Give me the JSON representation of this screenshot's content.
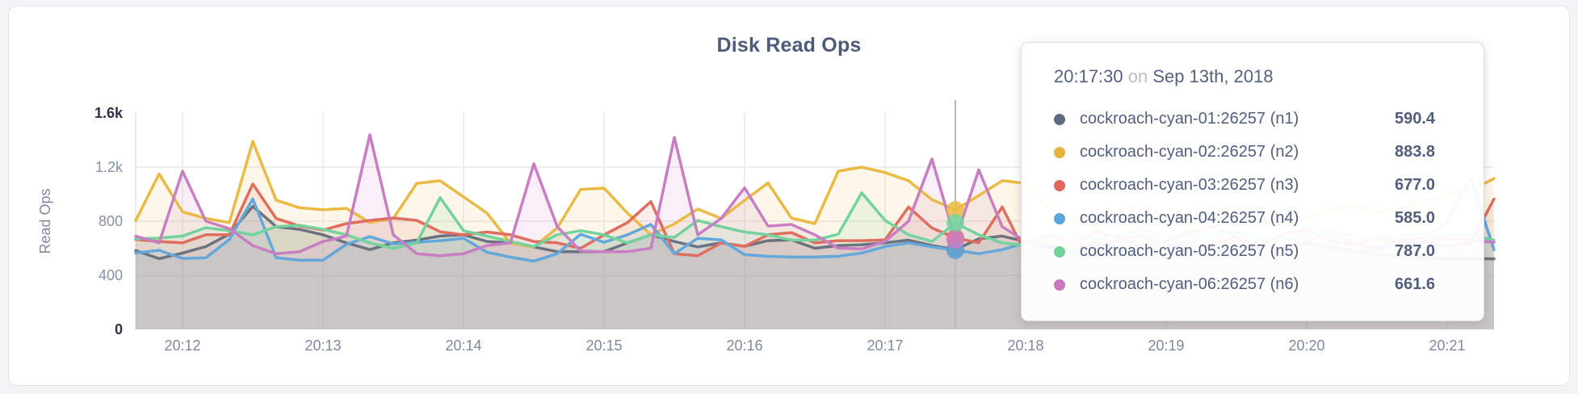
{
  "chart": {
    "title": "Disk Read Ops",
    "y_axis_label": "Read Ops"
  },
  "tooltip": {
    "time": "20:17:30",
    "conjunction": "on",
    "date": "Sep 13th, 2018",
    "rows": [
      {
        "label": "cockroach-cyan-01:26257 (n1)",
        "value": "590.4",
        "color": "#606a80"
      },
      {
        "label": "cockroach-cyan-02:26257 (n2)",
        "value": "883.8",
        "color": "#e6b33f"
      },
      {
        "label": "cockroach-cyan-03:26257 (n3)",
        "value": "677.0",
        "color": "#df675c"
      },
      {
        "label": "cockroach-cyan-04:26257 (n4)",
        "value": "585.0",
        "color": "#5ea5da"
      },
      {
        "label": "cockroach-cyan-05:26257 (n5)",
        "value": "787.0",
        "color": "#72d297"
      },
      {
        "label": "cockroach-cyan-06:26257 (n6)",
        "value": "661.6",
        "color": "#c978c0"
      }
    ]
  },
  "chart_data": {
    "type": "line",
    "title": "Disk Read Ops",
    "xlabel": "",
    "ylabel": "Read Ops",
    "ylim": [
      0,
      1600
    ],
    "grid": true,
    "legend_position": "tooltip",
    "y_ticks": [
      {
        "label": "0",
        "value": 0,
        "strong": true
      },
      {
        "label": "400",
        "value": 400,
        "strong": false
      },
      {
        "label": "800",
        "value": 800,
        "strong": false
      },
      {
        "label": "1.2k",
        "value": 1200,
        "strong": false
      },
      {
        "label": "1.6k",
        "value": 1600,
        "strong": true
      }
    ],
    "x_tick_labels": [
      "20:12",
      "20:13",
      "20:14",
      "20:15",
      "20:16",
      "20:17",
      "20:18",
      "20:19",
      "20:20",
      "20:21"
    ],
    "x": [
      "20:11:40",
      "20:11:50",
      "20:12:00",
      "20:12:10",
      "20:12:20",
      "20:12:30",
      "20:12:40",
      "20:12:50",
      "20:13:00",
      "20:13:10",
      "20:13:20",
      "20:13:30",
      "20:13:40",
      "20:13:50",
      "20:14:00",
      "20:14:10",
      "20:14:20",
      "20:14:30",
      "20:14:40",
      "20:14:50",
      "20:15:00",
      "20:15:10",
      "20:15:20",
      "20:15:30",
      "20:15:40",
      "20:15:50",
      "20:16:00",
      "20:16:10",
      "20:16:20",
      "20:16:30",
      "20:16:40",
      "20:16:50",
      "20:17:00",
      "20:17:10",
      "20:17:20",
      "20:17:30",
      "20:17:40",
      "20:17:50",
      "20:18:00",
      "20:18:10",
      "20:18:20",
      "20:18:30",
      "20:18:40",
      "20:18:50",
      "20:19:00",
      "20:19:10",
      "20:19:20",
      "20:19:30",
      "20:19:40",
      "20:19:50",
      "20:20:00",
      "20:20:10",
      "20:20:20",
      "20:20:30",
      "20:20:40",
      "20:20:50",
      "20:21:00",
      "20:21:10",
      "20:21:20"
    ],
    "hover": {
      "index": 35,
      "time": "20:17:30",
      "date": "Sep 13th, 2018"
    },
    "series": [
      {
        "name": "cockroach-cyan-01:26257 (n1)",
        "node": "n1",
        "color": "#6b7280",
        "hover_value": 590.4,
        "values": [
          583,
          523,
          565,
          613,
          705,
          910,
          760,
          740,
          700,
          640,
          590,
          640,
          660,
          690,
          700,
          650,
          640,
          610,
          575,
          575,
          575,
          640,
          700,
          650,
          610,
          640,
          615,
          656,
          662,
          600,
          620,
          626,
          640,
          660,
          620,
          590.4,
          670,
          690,
          650,
          620,
          580,
          640,
          600,
          560,
          610,
          650,
          600,
          570,
          620,
          590,
          640,
          610,
          580,
          560,
          540,
          530,
          525,
          523,
          522
        ]
      },
      {
        "name": "cockroach-cyan-02:26257 (n2)",
        "node": "n2",
        "color": "#eaba45",
        "hover_value": 883.8,
        "values": [
          805,
          1150,
          870,
          820,
          790,
          1390,
          955,
          900,
          885,
          895,
          790,
          820,
          1080,
          1100,
          980,
          860,
          640,
          610,
          750,
          1035,
          1045,
          860,
          700,
          780,
          890,
          820,
          955,
          1083,
          824,
          782,
          1170,
          1200,
          1160,
          1100,
          960,
          883.8,
          990,
          1100,
          1080,
          900,
          820,
          760,
          880,
          940,
          820,
          780,
          850,
          920,
          800,
          760,
          830,
          880,
          920,
          860,
          900,
          950,
          1000,
          1030,
          1115
        ]
      },
      {
        "name": "cockroach-cyan-03:26257 (n3)",
        "node": "n3",
        "color": "#df6e60",
        "hover_value": 677.0,
        "values": [
          665,
          650,
          640,
          700,
          700,
          1075,
          820,
          765,
          735,
          782,
          806,
          824,
          806,
          722,
          700,
          720,
          700,
          650,
          640,
          600,
          700,
          790,
          945,
          560,
          545,
          640,
          614,
          700,
          716,
          640,
          656,
          656,
          662,
          905,
          750,
          677.0,
          640,
          905,
          560,
          700,
          640,
          720,
          680,
          600,
          650,
          720,
          760,
          680,
          620,
          700,
          740,
          660,
          620,
          680,
          640,
          650,
          610,
          640,
          965
        ]
      },
      {
        "name": "cockroach-cyan-04:26257 (n4)",
        "node": "n4",
        "color": "#64a7da",
        "hover_value": 585.0,
        "values": [
          565,
          585,
          525,
          530,
          665,
          965,
          530,
          512,
          512,
          630,
          686,
          632,
          644,
          656,
          674,
          571,
          535,
          505,
          560,
          704,
          644,
          700,
          776,
          560,
          674,
          662,
          553,
          541,
          535,
          535,
          541,
          565,
          613,
          640,
          610,
          585.0,
          560,
          590,
          640,
          600,
          560,
          620,
          580,
          550,
          600,
          640,
          590,
          560,
          610,
          580,
          630,
          600,
          570,
          590,
          620,
          650,
          800,
          1120,
          590
        ]
      },
      {
        "name": "cockroach-cyan-05:26257 (n5)",
        "node": "n5",
        "color": "#74d39c",
        "hover_value": 787.0,
        "values": [
          670,
          675,
          690,
          752,
          730,
          700,
          760,
          770,
          740,
          700,
          640,
          600,
          640,
          975,
          730,
          690,
          650,
          613,
          700,
          730,
          700,
          640,
          700,
          680,
          806,
          760,
          720,
          700,
          660,
          660,
          704,
          1010,
          806,
          700,
          650,
          787.0,
          700,
          640,
          620,
          680,
          720,
          660,
          700,
          740,
          680,
          650,
          700,
          720,
          680,
          660,
          700,
          730,
          690,
          660,
          700,
          710,
          700,
          700,
          660
        ]
      },
      {
        "name": "cockroach-cyan-06:26257 (n6)",
        "node": "n6",
        "color": "#c97ec4",
        "hover_value": 661.6,
        "values": [
          690,
          640,
          1170,
          800,
          745,
          620,
          560,
          575,
          650,
          690,
          1440,
          700,
          560,
          545,
          560,
          620,
          640,
          1225,
          760,
          580,
          575,
          575,
          600,
          1420,
          700,
          820,
          1047,
          764,
          776,
          700,
          601,
          595,
          650,
          800,
          1260,
          661.6,
          1180,
          760,
          650,
          700,
          640,
          600,
          660,
          700,
          620,
          580,
          640,
          680,
          620,
          590,
          650,
          700,
          640,
          600,
          660,
          680,
          670,
          660,
          645
        ]
      }
    ]
  }
}
